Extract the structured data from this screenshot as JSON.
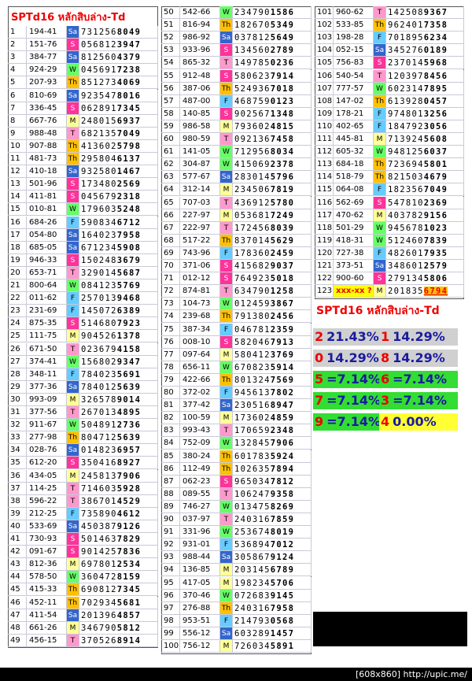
{
  "header": {
    "title": "SPTd16 หลักสิบล่าง-Td"
  },
  "columns": [
    [
      [
        "1",
        "194-41",
        "Sa",
        "731256",
        "8049"
      ],
      [
        "2",
        "151-76",
        "S",
        "056812",
        "3947"
      ],
      [
        "3",
        "384-77",
        "Sa",
        "812560",
        "4379"
      ],
      [
        "4",
        "924-29",
        "W",
        "045691",
        "7238"
      ],
      [
        "5",
        "207-93",
        "Th",
        "851273",
        "4069"
      ],
      [
        "6",
        "810-69",
        "Sa",
        "923547",
        "8016"
      ],
      [
        "7",
        "336-45",
        "S",
        "062891",
        "7345"
      ],
      [
        "8",
        "667-76",
        "M",
        "248015",
        "6937"
      ],
      [
        "9",
        "988-48",
        "T",
        "682135",
        "7049"
      ],
      [
        "10",
        "907-88",
        "Th",
        "413602",
        "5798"
      ],
      [
        "11",
        "481-73",
        "Th",
        "295804",
        "6137"
      ],
      [
        "12",
        "410-18",
        "Sa",
        "932580",
        "1467"
      ],
      [
        "13",
        "501-96",
        "S",
        "173480",
        "2569"
      ],
      [
        "14",
        "411-81",
        "S",
        "045679",
        "2318"
      ],
      [
        "15",
        "010-81",
        "W",
        "179603",
        "5248"
      ],
      [
        "16",
        "684-26",
        "F",
        "590834",
        "6712"
      ],
      [
        "17",
        "054-80",
        "Sa",
        "164023",
        "7958"
      ],
      [
        "18",
        "685-05",
        "Sa",
        "671234",
        "5908"
      ],
      [
        "19",
        "946-33",
        "S",
        "150248",
        "3679"
      ],
      [
        "20",
        "653-71",
        "T",
        "329014",
        "5687"
      ],
      [
        "21",
        "800-64",
        "W",
        "084123",
        "5769"
      ],
      [
        "22",
        "011-62",
        "F",
        "257013",
        "9468"
      ],
      [
        "23",
        "231-69",
        "F",
        "145072",
        "6389"
      ],
      [
        "24",
        "875-35",
        "S",
        "514680",
        "7923"
      ],
      [
        "25",
        "111-75",
        "M",
        "904526",
        "1378"
      ],
      [
        "26",
        "671-50",
        "T",
        "023679",
        "4158"
      ],
      [
        "27",
        "374-41",
        "W",
        "156802",
        "9347"
      ],
      [
        "28",
        "348-11",
        "F",
        "784023",
        "5691"
      ],
      [
        "29",
        "377-36",
        "Sa",
        "784012",
        "5639"
      ],
      [
        "30",
        "993-09",
        "M",
        "326578",
        "9014"
      ],
      [
        "31",
        "377-56",
        "T",
        "267013",
        "4895"
      ],
      [
        "32",
        "911-67",
        "W",
        "504891",
        "2736"
      ],
      [
        "33",
        "277-98",
        "Th",
        "804712",
        "5639"
      ],
      [
        "34",
        "028-76",
        "Sa",
        "014823",
        "6957"
      ],
      [
        "35",
        "612-20",
        "S",
        "350416",
        "8927"
      ],
      [
        "36",
        "434-05",
        "M",
        "245813",
        "7906"
      ],
      [
        "37",
        "114-25",
        "T",
        "714603",
        "5928"
      ],
      [
        "38",
        "596-22",
        "T",
        "386701",
        "4529"
      ],
      [
        "39",
        "212-25",
        "F",
        "735890",
        "4612"
      ],
      [
        "40",
        "533-69",
        "Sa",
        "450387",
        "9126"
      ],
      [
        "41",
        "730-93",
        "S",
        "501463",
        "7829"
      ],
      [
        "42",
        "091-67",
        "S",
        "901425",
        "7836"
      ],
      [
        "43",
        "812-36",
        "M",
        "697801",
        "2534"
      ],
      [
        "44",
        "578-50",
        "W",
        "360472",
        "8159"
      ],
      [
        "45",
        "415-33",
        "Th",
        "690812",
        "7345"
      ],
      [
        "46",
        "452-11",
        "Th",
        "702934",
        "5681"
      ],
      [
        "47",
        "411-54",
        "Sa",
        "201396",
        "4857"
      ],
      [
        "48",
        "661-26",
        "M",
        "346790",
        "5812"
      ],
      [
        "49",
        "456-15",
        "T",
        "370526",
        "8914"
      ]
    ],
    [
      [
        "50",
        "542-66",
        "W",
        "234790",
        "1586"
      ],
      [
        "51",
        "816-94",
        "Th",
        "182670",
        "5349"
      ],
      [
        "52",
        "986-92",
        "Sa",
        "037812",
        "5649"
      ],
      [
        "53",
        "933-96",
        "S",
        "134560",
        "2789"
      ],
      [
        "54",
        "865-32",
        "T",
        "149785",
        "0236"
      ],
      [
        "55",
        "912-48",
        "S",
        "580623",
        "7914"
      ],
      [
        "56",
        "387-06",
        "Th",
        "524936",
        "7018"
      ],
      [
        "57",
        "487-00",
        "F",
        "468759",
        "0123"
      ],
      [
        "58",
        "140-85",
        "S",
        "902567",
        "1348"
      ],
      [
        "59",
        "986-58",
        "M",
        "793602",
        "4815"
      ],
      [
        "60",
        "980-59",
        "T",
        "092136",
        "7458"
      ],
      [
        "61",
        "141-05",
        "W",
        "712956",
        "8034"
      ],
      [
        "62",
        "304-87",
        "W",
        "415069",
        "2378"
      ],
      [
        "63",
        "577-67",
        "Sa",
        "283014",
        "5796"
      ],
      [
        "64",
        "312-14",
        "M",
        "234506",
        "7819"
      ],
      [
        "65",
        "707-03",
        "T",
        "436912",
        "5780"
      ],
      [
        "66",
        "227-97",
        "M",
        "053681",
        "7249"
      ],
      [
        "67",
        "222-97",
        "T",
        "172456",
        "8039"
      ],
      [
        "68",
        "517-22",
        "Th",
        "837014",
        "5629"
      ],
      [
        "69",
        "743-96",
        "F",
        "178360",
        "2459"
      ],
      [
        "70",
        "371-06",
        "S",
        "415682",
        "9037"
      ],
      [
        "71",
        "012-12",
        "S",
        "764923",
        "5018"
      ],
      [
        "72",
        "874-81",
        "T",
        "634790",
        "1258"
      ],
      [
        "73",
        "104-73",
        "W",
        "012459",
        "3867"
      ],
      [
        "74",
        "239-68",
        "Th",
        "791380",
        "2456"
      ],
      [
        "75",
        "387-34",
        "F",
        "046781",
        "2359"
      ],
      [
        "76",
        "008-10",
        "S",
        "582046",
        "7913"
      ],
      [
        "77",
        "097-64",
        "M",
        "580412",
        "3769"
      ],
      [
        "78",
        "656-11",
        "W",
        "670823",
        "5914"
      ],
      [
        "79",
        "422-66",
        "Th",
        "801324",
        "7569"
      ],
      [
        "80",
        "372-02",
        "F",
        "945613",
        "7802"
      ],
      [
        "81",
        "377-42",
        "Sa",
        "230516",
        "8947"
      ],
      [
        "82",
        "100-59",
        "M",
        "173602",
        "4859"
      ],
      [
        "83",
        "993-43",
        "T",
        "170659",
        "2348"
      ],
      [
        "84",
        "752-09",
        "W",
        "132845",
        "7906"
      ],
      [
        "85",
        "380-24",
        "Th",
        "601783",
        "5924"
      ],
      [
        "86",
        "112-49",
        "Th",
        "102635",
        "7894"
      ],
      [
        "87",
        "062-23",
        "S",
        "965034",
        "7812"
      ],
      [
        "88",
        "089-55",
        "T",
        "106247",
        "9358"
      ],
      [
        "89",
        "746-27",
        "W",
        "013475",
        "8269"
      ],
      [
        "90",
        "037-97",
        "T",
        "240316",
        "7859"
      ],
      [
        "91",
        "331-96",
        "W",
        "253674",
        "8019"
      ],
      [
        "92",
        "931-01",
        "F",
        "536894",
        "7012"
      ],
      [
        "93",
        "988-44",
        "Sa",
        "305867",
        "9124"
      ],
      [
        "94",
        "136-85",
        "M",
        "203145",
        "6789"
      ],
      [
        "95",
        "417-05",
        "M",
        "198234",
        "5706"
      ],
      [
        "96",
        "370-46",
        "W",
        "072683",
        "9145"
      ],
      [
        "97",
        "276-88",
        "Th",
        "240316",
        "7958"
      ],
      [
        "98",
        "953-51",
        "F",
        "214793",
        "0568"
      ],
      [
        "99",
        "556-12",
        "Sa",
        "603289",
        "1457"
      ],
      [
        "100",
        "756-12",
        "M",
        "726034",
        "5891"
      ]
    ],
    [
      [
        "101",
        "960-62",
        "T",
        "142508",
        "9367"
      ],
      [
        "102",
        "533-85",
        "Th",
        "962401",
        "7358"
      ],
      [
        "103",
        "198-28",
        "F",
        "701895",
        "6234"
      ],
      [
        "104",
        "052-15",
        "Sa",
        "345276",
        "0189"
      ],
      [
        "105",
        "756-83",
        "S",
        "237014",
        "5968"
      ],
      [
        "106",
        "540-54",
        "T",
        "120397",
        "8456"
      ],
      [
        "107",
        "777-57",
        "W",
        "602314",
        "7895"
      ],
      [
        "108",
        "147-02",
        "Th",
        "613928",
        "0457"
      ],
      [
        "109",
        "178-21",
        "F",
        "974801",
        "3256"
      ],
      [
        "110",
        "402-65",
        "F",
        "184792",
        "3056"
      ],
      [
        "111",
        "445-81",
        "M",
        "713924",
        "5608"
      ],
      [
        "112",
        "605-32",
        "W",
        "948125",
        "6037"
      ],
      [
        "113",
        "684-18",
        "Th",
        "723694",
        "5801"
      ],
      [
        "114",
        "518-79",
        "Th",
        "821503",
        "4679"
      ],
      [
        "115",
        "064-08",
        "F",
        "182356",
        "7049"
      ],
      [
        "116",
        "562-69",
        "S",
        "547810",
        "2369"
      ],
      [
        "117",
        "470-62",
        "M",
        "403782",
        "9156"
      ],
      [
        "118",
        "501-29",
        "W",
        "945678",
        "1023"
      ],
      [
        "119",
        "418-31",
        "W",
        "512460",
        "7839"
      ],
      [
        "120",
        "727-38",
        "F",
        "482601",
        "7935"
      ],
      [
        "121",
        "373-51",
        "Sa",
        "348601",
        "2579"
      ],
      [
        "122",
        "900-60",
        "S",
        "279134",
        "5806"
      ],
      [
        "123",
        "xxx-xx ?",
        "M",
        "201835",
        "6794"
      ]
    ]
  ],
  "summary": {
    "title": "SPTd16 หลักสิบล่าง-Td",
    "rows": [
      [
        [
          "2",
          "21.43%"
        ],
        [
          "1",
          "14.29%"
        ]
      ],
      [
        [
          "0",
          "14.29%"
        ],
        [
          "8",
          "14.29%"
        ]
      ],
      [
        [
          "5",
          "=7.14%"
        ],
        [
          "6",
          "=7.14%"
        ]
      ],
      [
        [
          "7",
          "=7.14%"
        ],
        [
          "3",
          "=7.14%"
        ]
      ],
      [
        [
          "9",
          "=7.14%"
        ],
        [
          "4",
          "0.00%"
        ]
      ]
    ]
  },
  "footer": "[608x860] http://upic.me/"
}
